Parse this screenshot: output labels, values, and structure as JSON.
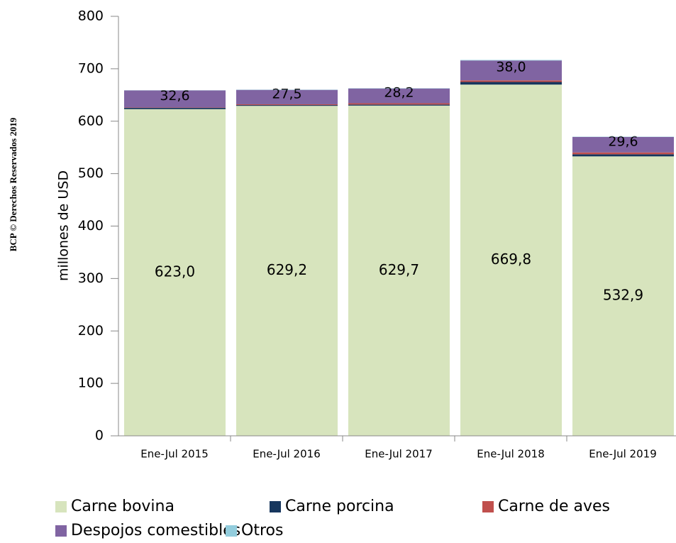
{
  "chart_data": {
    "type": "stacked_bar",
    "side_note": "BCP © Derechos Reservados 2019",
    "y_label": "millones de  USD",
    "categories": [
      "Ene-Jul 2015",
      "Ene-Jul 2016",
      "Ene-Jul 2017",
      "Ene-Jul 2018",
      "Ene-Jul 2019"
    ],
    "series": [
      {
        "name": "Carne bovina",
        "color": "#d7e4bd",
        "values": [
          623.0,
          629.2,
          629.7,
          669.8,
          532.9
        ],
        "value_labels": [
          "623,0",
          "629,2",
          "629,7",
          "669,8",
          "532,9"
        ]
      },
      {
        "name": "Carne porcina",
        "color": "#17375e",
        "values": [
          2.5,
          1.5,
          2,
          5,
          4
        ]
      },
      {
        "name": "Carne de aves",
        "color": "#c0504d",
        "values": [
          0.6,
          1.5,
          2.5,
          3,
          3.5
        ]
      },
      {
        "name": "Despojos comestibles",
        "color": "#8064a2",
        "values": [
          32.6,
          27.5,
          28.2,
          38.0,
          29.6
        ],
        "value_labels": [
          "32,6",
          "27,5",
          "28,2",
          "38,0",
          "29,6"
        ]
      },
      {
        "name": "Otros",
        "color": "#93cddd",
        "values": [
          0.3,
          0.5,
          0.5,
          1,
          0.5
        ]
      }
    ],
    "ylim": [
      0,
      800
    ],
    "yticks": [
      0,
      100,
      200,
      300,
      400,
      500,
      600,
      700,
      800
    ]
  }
}
